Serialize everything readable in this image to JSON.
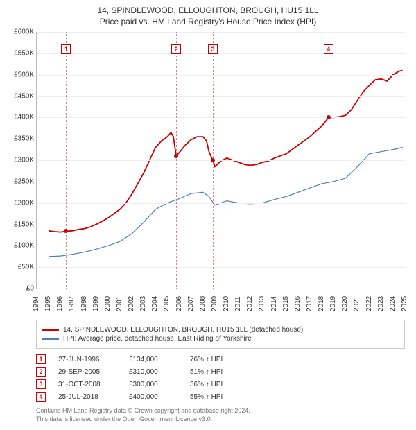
{
  "title_line1": "14, SPINDLEWOOD, ELLOUGHTON, BROUGH, HU15 1LL",
  "title_line2": "Price paid vs. HM Land Registry's House Price Index (HPI)",
  "chart": {
    "ylim": [
      0,
      600000
    ],
    "ytick_step": 50000,
    "ylabels": [
      "£0",
      "£50K",
      "£100K",
      "£150K",
      "£200K",
      "£250K",
      "£300K",
      "£350K",
      "£400K",
      "£450K",
      "£500K",
      "£550K",
      "£600K"
    ],
    "xlim": [
      1994,
      2025
    ],
    "xlabels": [
      "1994",
      "1995",
      "1996",
      "1997",
      "1998",
      "1999",
      "2000",
      "2001",
      "2002",
      "2003",
      "2004",
      "2005",
      "2006",
      "2007",
      "2008",
      "2009",
      "2010",
      "2011",
      "2012",
      "2013",
      "2014",
      "2015",
      "2016",
      "2017",
      "2018",
      "2019",
      "2020",
      "2021",
      "2022",
      "2023",
      "2024",
      "2025"
    ],
    "grid_color": "#eeeeee",
    "axis_color": "#bbbbbb",
    "background": "#ffffff",
    "series": {
      "price": {
        "color": "#cc0000",
        "width": 1.8,
        "points": [
          [
            1995.0,
            135000
          ],
          [
            1995.5,
            133000
          ],
          [
            1996.0,
            132000
          ],
          [
            1996.48,
            134000
          ],
          [
            1997.0,
            135000
          ],
          [
            1997.5,
            138000
          ],
          [
            1998.0,
            140000
          ],
          [
            1998.5,
            144000
          ],
          [
            1999.0,
            150000
          ],
          [
            1999.5,
            157000
          ],
          [
            2000.0,
            165000
          ],
          [
            2000.5,
            175000
          ],
          [
            2001.0,
            185000
          ],
          [
            2001.5,
            200000
          ],
          [
            2002.0,
            220000
          ],
          [
            2002.5,
            245000
          ],
          [
            2003.0,
            270000
          ],
          [
            2003.5,
            300000
          ],
          [
            2004.0,
            330000
          ],
          [
            2004.5,
            345000
          ],
          [
            2005.0,
            355000
          ],
          [
            2005.3,
            365000
          ],
          [
            2005.5,
            355000
          ],
          [
            2005.74,
            310000
          ],
          [
            2006.0,
            318000
          ],
          [
            2006.5,
            335000
          ],
          [
            2007.0,
            348000
          ],
          [
            2007.5,
            355000
          ],
          [
            2008.0,
            355000
          ],
          [
            2008.3,
            345000
          ],
          [
            2008.5,
            320000
          ],
          [
            2008.83,
            300000
          ],
          [
            2009.0,
            285000
          ],
          [
            2009.5,
            298000
          ],
          [
            2010.0,
            305000
          ],
          [
            2010.5,
            300000
          ],
          [
            2011.0,
            295000
          ],
          [
            2011.5,
            290000
          ],
          [
            2012.0,
            288000
          ],
          [
            2012.5,
            290000
          ],
          [
            2013.0,
            295000
          ],
          [
            2013.5,
            298000
          ],
          [
            2014.0,
            305000
          ],
          [
            2014.5,
            310000
          ],
          [
            2015.0,
            315000
          ],
          [
            2015.5,
            325000
          ],
          [
            2016.0,
            335000
          ],
          [
            2016.5,
            345000
          ],
          [
            2017.0,
            355000
          ],
          [
            2017.5,
            368000
          ],
          [
            2018.0,
            380000
          ],
          [
            2018.3,
            390000
          ],
          [
            2018.56,
            400000
          ],
          [
            2019.0,
            400000
          ],
          [
            2019.5,
            402000
          ],
          [
            2020.0,
            405000
          ],
          [
            2020.5,
            418000
          ],
          [
            2021.0,
            440000
          ],
          [
            2021.5,
            460000
          ],
          [
            2022.0,
            475000
          ],
          [
            2022.5,
            488000
          ],
          [
            2023.0,
            490000
          ],
          [
            2023.5,
            485000
          ],
          [
            2024.0,
            500000
          ],
          [
            2024.5,
            508000
          ],
          [
            2024.8,
            510000
          ]
        ]
      },
      "hpi": {
        "color": "#4a7ebb",
        "width": 1.2,
        "points": [
          [
            1995.0,
            75000
          ],
          [
            1996.0,
            76000
          ],
          [
            1997.0,
            80000
          ],
          [
            1998.0,
            85000
          ],
          [
            1999.0,
            92000
          ],
          [
            2000.0,
            100000
          ],
          [
            2001.0,
            110000
          ],
          [
            2002.0,
            128000
          ],
          [
            2003.0,
            155000
          ],
          [
            2004.0,
            185000
          ],
          [
            2005.0,
            200000
          ],
          [
            2006.0,
            210000
          ],
          [
            2007.0,
            222000
          ],
          [
            2008.0,
            225000
          ],
          [
            2008.5,
            215000
          ],
          [
            2009.0,
            195000
          ],
          [
            2010.0,
            205000
          ],
          [
            2011.0,
            200000
          ],
          [
            2012.0,
            198000
          ],
          [
            2013.0,
            200000
          ],
          [
            2014.0,
            208000
          ],
          [
            2015.0,
            215000
          ],
          [
            2016.0,
            225000
          ],
          [
            2017.0,
            235000
          ],
          [
            2018.0,
            245000
          ],
          [
            2019.0,
            250000
          ],
          [
            2020.0,
            258000
          ],
          [
            2021.0,
            285000
          ],
          [
            2022.0,
            315000
          ],
          [
            2023.0,
            320000
          ],
          [
            2024.0,
            325000
          ],
          [
            2024.8,
            330000
          ]
        ]
      }
    },
    "sale_markers": [
      {
        "n": "1",
        "x": 1996.48,
        "y": 134000,
        "top_y": 560000
      },
      {
        "n": "2",
        "x": 2005.74,
        "y": 310000,
        "top_y": 560000
      },
      {
        "n": "3",
        "x": 2008.83,
        "y": 300000,
        "top_y": 560000
      },
      {
        "n": "4",
        "x": 2018.56,
        "y": 400000,
        "top_y": 560000
      }
    ]
  },
  "legend": [
    {
      "color": "#cc0000",
      "label": "14, SPINDLEWOOD, ELLOUGHTON, BROUGH, HU15 1LL (detached house)"
    },
    {
      "color": "#4a7ebb",
      "label": "HPI: Average price, detached house, East Riding of Yorkshire"
    }
  ],
  "sales": [
    {
      "n": "1",
      "date": "27-JUN-1996",
      "price": "£134,000",
      "pct": "76% ↑ HPI"
    },
    {
      "n": "2",
      "date": "29-SEP-2005",
      "price": "£310,000",
      "pct": "51% ↑ HPI"
    },
    {
      "n": "3",
      "date": "31-OCT-2008",
      "price": "£300,000",
      "pct": "36% ↑ HPI"
    },
    {
      "n": "4",
      "date": "25-JUL-2018",
      "price": "£400,000",
      "pct": "55% ↑ HPI"
    }
  ],
  "footer_line1": "Contains HM Land Registry data © Crown copyright and database right 2024.",
  "footer_line2": "This data is licensed under the Open Government Licence v3.0."
}
